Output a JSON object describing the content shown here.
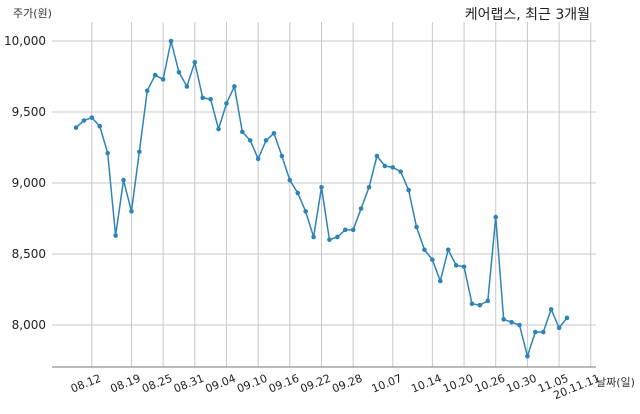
{
  "chart_data": {
    "type": "line",
    "title": "케어랩스, 최근 3개월",
    "ylabel": "주가(원)",
    "xlabel": "날짜(일)",
    "ylim": [
      7700,
      10150
    ],
    "yticks": [
      8000,
      8500,
      9000,
      9500,
      10000
    ],
    "ytick_labels": [
      "8,000",
      "8,500",
      "9,000",
      "9,500",
      "10,000"
    ],
    "xtick_labels": [
      "08.12",
      "08.19",
      "08.25",
      "08.31",
      "09.04",
      "09.10",
      "09.16",
      "09.22",
      "09.28",
      "10.07",
      "10.14",
      "10.20",
      "10.26",
      "10.30",
      "11.05",
      "20.11.11"
    ],
    "xtick_index": [
      2,
      7,
      11,
      15,
      19,
      23,
      27,
      31,
      35,
      40,
      45,
      49,
      53,
      57,
      61,
      65
    ],
    "grid": true,
    "line_color": "#2e83b7",
    "series": [
      {
        "values": [
          9390,
          9440,
          9460,
          9400,
          9210,
          8630,
          9020,
          8800,
          9220,
          9650,
          9760,
          9730,
          10000,
          9780,
          9680,
          9850,
          9600,
          9590,
          9380,
          9560,
          9680,
          9360,
          9300,
          9170,
          9300,
          9350,
          9190,
          9020,
          8930,
          8800,
          8620,
          8970,
          8600,
          8620,
          8670,
          8670,
          8820,
          8970,
          9190,
          9120,
          9110,
          9080,
          8950,
          8690,
          8530,
          8460,
          8310,
          8530,
          8420,
          8410,
          8150,
          8140,
          8170,
          8760,
          8040,
          8020,
          8000,
          7780,
          7950,
          7950,
          8110,
          7980,
          8050
        ]
      }
    ]
  }
}
